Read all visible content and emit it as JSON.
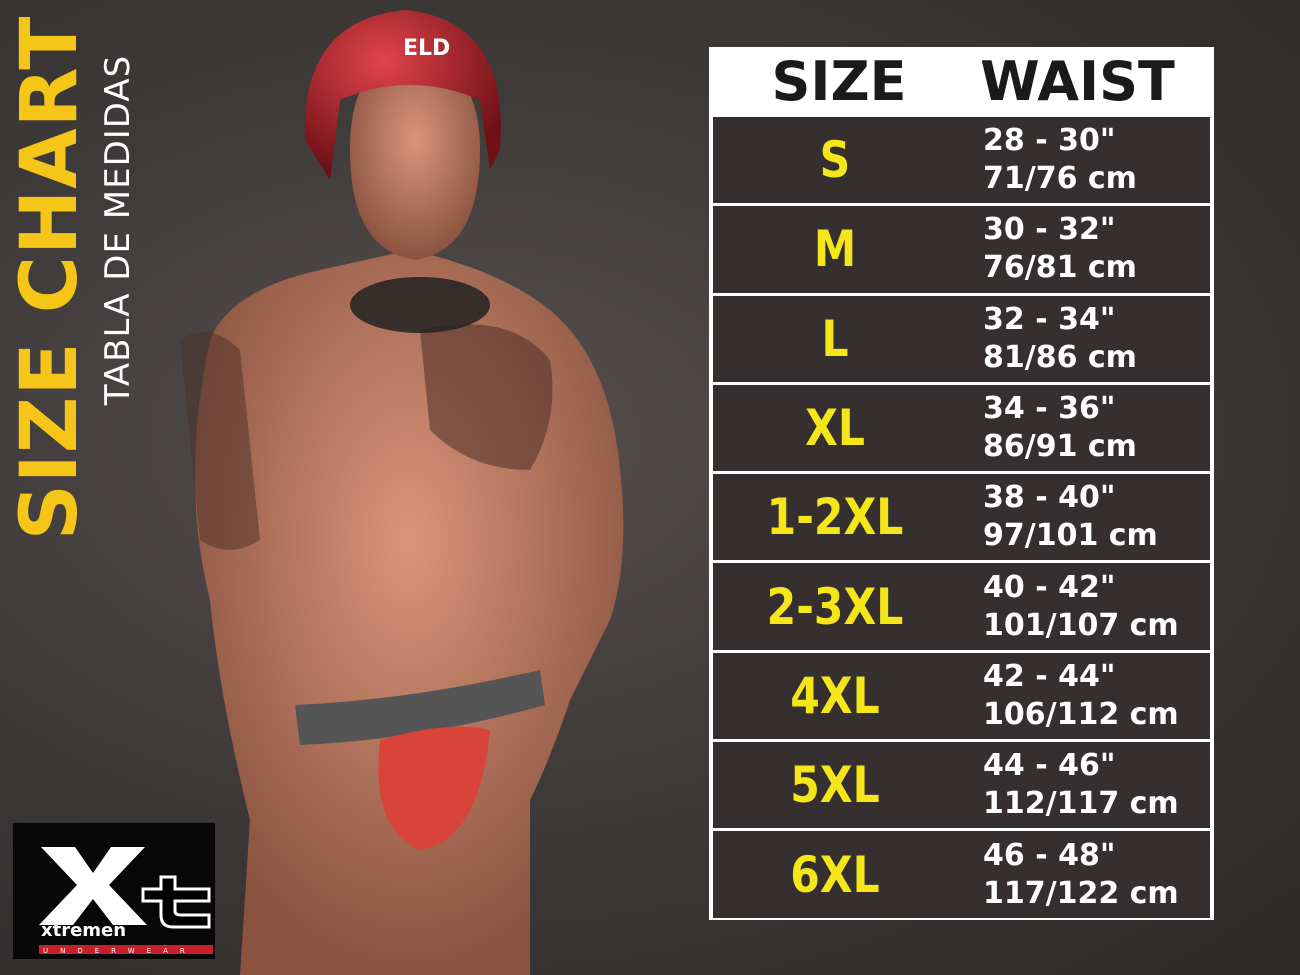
{
  "title": "SIZE CHART",
  "subtitle": "TABLA DE MEDIDAS",
  "brand": {
    "logo_text": "Xt",
    "name": "xtremen",
    "tagline": "UNDERWEAR"
  },
  "helmet_text": "ELD",
  "table": {
    "headers": [
      "SIZE",
      "WAIST"
    ],
    "rows": [
      {
        "size": "S",
        "inches": "28 - 30\"",
        "cm": "71/76 cm"
      },
      {
        "size": "M",
        "inches": "30 - 32\"",
        "cm": "76/81 cm"
      },
      {
        "size": "L",
        "inches": "32 - 34\"",
        "cm": "81/86 cm"
      },
      {
        "size": "XL",
        "inches": "34 - 36\"",
        "cm": "86/91 cm"
      },
      {
        "size": "1-2XL",
        "inches": "38 - 40\"",
        "cm": "97/101 cm"
      },
      {
        "size": "2-3XL",
        "inches": "40 - 42\"",
        "cm": "101/107 cm"
      },
      {
        "size": "4XL",
        "inches": "42 - 44\"",
        "cm": "106/112 cm"
      },
      {
        "size": "5XL",
        "inches": "44 - 46\"",
        "cm": "112/117 cm"
      },
      {
        "size": "6XL",
        "inches": "46 - 48\"",
        "cm": "117/122 cm"
      }
    ]
  },
  "colors": {
    "accent": "#f5c518",
    "size_text": "#f5e61a",
    "row_bg": "#35302f",
    "underwear": "#d9443a"
  }
}
